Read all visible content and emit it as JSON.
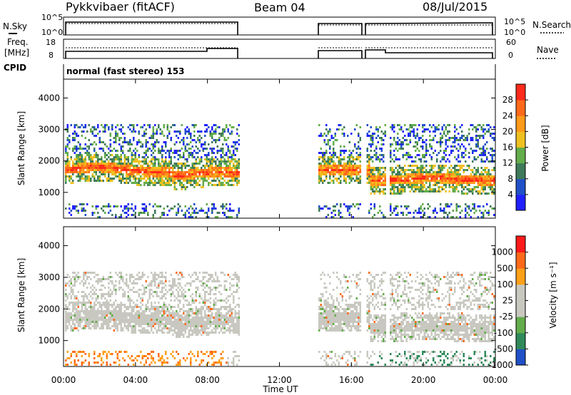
{
  "header": {
    "station": "Pykkvibaer (fitACF)",
    "beam": "Beam 04",
    "date": "08/Jul/2015"
  },
  "status_panels": {
    "nsky": {
      "label": "N.Sky",
      "ticks": [
        "10^5",
        "10^0"
      ]
    },
    "nsearch": {
      "label": "N.Search",
      "ticks": [
        "10^5",
        "10^0"
      ]
    },
    "freq": {
      "label_line1": "Freq.",
      "label_line2": "[MHz]",
      "ticks": [
        "18",
        "8"
      ]
    },
    "nave": {
      "label": "Nave",
      "ticks": [
        "60",
        "0"
      ]
    },
    "cpid": {
      "label": "CPID",
      "value": "normal (fast stereo) 153"
    }
  },
  "colors": {
    "power": [
      "#2020ff",
      "#2050c8",
      "#3f7a5a",
      "#63ad4a",
      "#f0c020",
      "#ff9a1a",
      "#ff6a1a",
      "#ff2a1a"
    ],
    "velocity": [
      "#ff1a1a",
      "#ff6a1a",
      "#ffa01a",
      "#c8c8c0",
      "#c8c8c0",
      "#63ad4a",
      "#2f8a5a",
      "#2050c8"
    ]
  },
  "chart_data": [
    {
      "type": "heatmap",
      "name": "Power",
      "ylabel": "Slant Range [km]",
      "yticks": [
        1000,
        2000,
        3000,
        4000
      ],
      "ylim": [
        180,
        4600
      ],
      "xlabel": "Time UT",
      "xticks": [
        "00:00",
        "04:00",
        "08:00",
        "12:00",
        "16:00",
        "20:00",
        "00:00"
      ],
      "xlim_hours": [
        0,
        24
      ],
      "colorbar_label": "Power [dB]",
      "colorbar_ticks": [
        "4",
        "8",
        "12",
        "16",
        "20",
        "24",
        "28"
      ],
      "data_gaps_hours": [
        [
          9.7,
          14.1
        ],
        [
          16.5,
          16.8
        ],
        [
          17.9,
          18.1
        ]
      ],
      "echo_bands": [
        {
          "start_h": 0.3,
          "end_h": 9.7,
          "range_km_start": 1700,
          "range_km_end": 1850,
          "power_db": 24
        },
        {
          "start_h": 14.1,
          "end_h": 16.5,
          "range_km": 1750,
          "power_db": 20
        },
        {
          "start_h": 16.8,
          "end_h": 24,
          "range_km": 1450,
          "power_db": 26
        }
      ]
    },
    {
      "type": "heatmap",
      "name": "Velocity",
      "ylabel": "Slant Range [km]",
      "yticks": [
        1000,
        2000,
        3000,
        4000
      ],
      "ylim": [
        180,
        4600
      ],
      "xlabel": "Time UT",
      "xticks": [
        "00:00",
        "04:00",
        "08:00",
        "12:00",
        "16:00",
        "20:00",
        "00:00"
      ],
      "xlim_hours": [
        0,
        24
      ],
      "colorbar_label": "Velocity [m s⁻¹]",
      "colorbar_ticks": [
        "1000",
        "500",
        "100",
        "25",
        "-25",
        "-100",
        "-500",
        "-1000"
      ],
      "data_gaps_hours": [
        [
          9.7,
          14.1
        ],
        [
          16.5,
          16.8
        ],
        [
          17.9,
          18.1
        ]
      ]
    }
  ]
}
